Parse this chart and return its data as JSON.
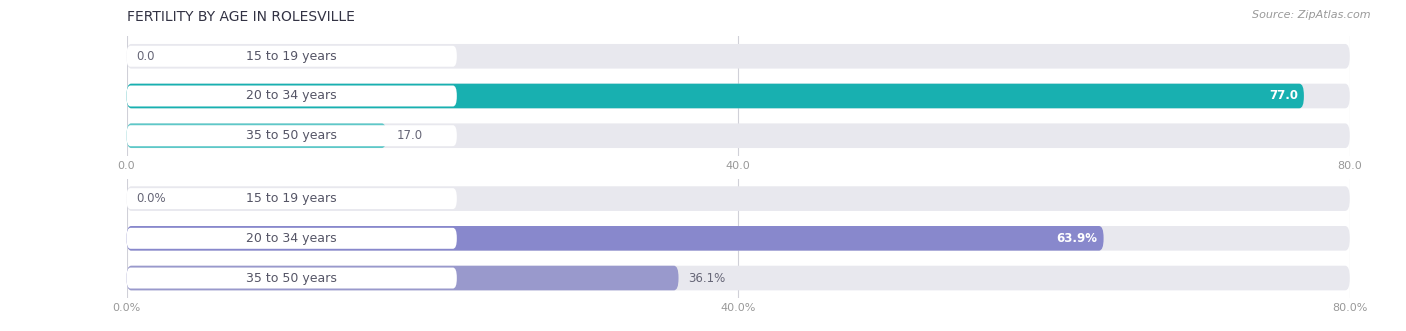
{
  "title": "FERTILITY BY AGE IN ROLESVILLE",
  "source": "Source: ZipAtlas.com",
  "top_chart": {
    "categories": [
      "15 to 19 years",
      "20 to 34 years",
      "35 to 50 years"
    ],
    "values": [
      0.0,
      77.0,
      17.0
    ],
    "max_value": 80.0,
    "tick_values": [
      0.0,
      40.0,
      80.0
    ],
    "tick_labels": [
      "0.0",
      "40.0",
      "80.0"
    ],
    "bar_colors": [
      "#7dd4d4",
      "#18b0b0",
      "#5ec8c8"
    ],
    "bar_bg_color": "#e8e8ee",
    "value_labels": [
      "0.0",
      "77.0",
      "17.0"
    ],
    "value_inside": [
      false,
      true,
      false
    ]
  },
  "bottom_chart": {
    "categories": [
      "15 to 19 years",
      "20 to 34 years",
      "35 to 50 years"
    ],
    "values": [
      0.0,
      63.9,
      36.1
    ],
    "max_value": 80.0,
    "tick_values": [
      0.0,
      40.0,
      80.0
    ],
    "tick_labels": [
      "0.0%",
      "40.0%",
      "80.0%"
    ],
    "bar_colors": [
      "#b0b0dd",
      "#8888cc",
      "#9999cc"
    ],
    "bar_bg_color": "#e8e8ee",
    "value_labels": [
      "0.0%",
      "63.9%",
      "36.1%"
    ],
    "value_inside": [
      false,
      true,
      false
    ]
  },
  "title_fontsize": 10,
  "source_fontsize": 8,
  "label_fontsize": 9,
  "tick_fontsize": 8,
  "value_fontsize": 8.5,
  "background_color": "#ffffff",
  "bar_height": 0.62,
  "label_bg_color": "#ffffff",
  "label_text_color": "#555566",
  "value_inside_color": "#ffffff",
  "value_outside_color": "#666677"
}
